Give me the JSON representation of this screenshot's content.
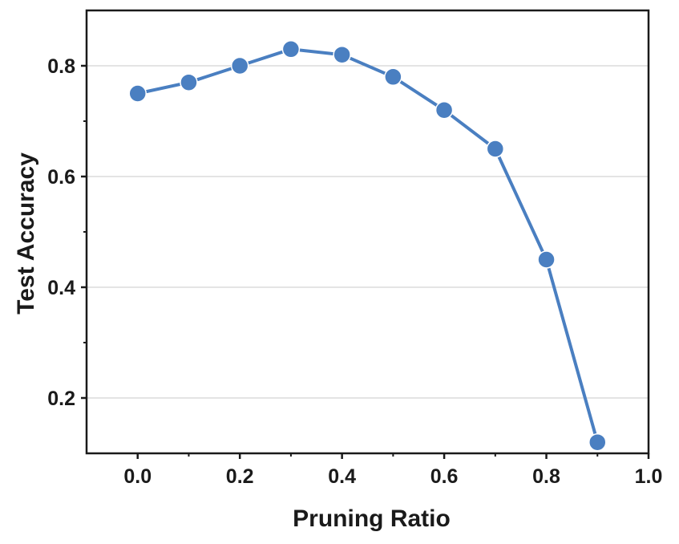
{
  "chart_data": {
    "type": "line",
    "title": "",
    "xlabel": "Pruning Ratio",
    "ylabel": "Test Accuracy",
    "xlim": [
      -0.1,
      1.0
    ],
    "ylim": [
      0.1,
      0.9
    ],
    "x_ticks": [
      0.0,
      0.2,
      0.4,
      0.6,
      0.8,
      1.0
    ],
    "x_tick_labels": [
      "0.0",
      "0.2",
      "0.4",
      "0.6",
      "0.8",
      "1.0"
    ],
    "y_ticks": [
      0.2,
      0.4,
      0.6,
      0.8
    ],
    "y_tick_labels": [
      "0.2",
      "0.4",
      "0.6",
      "0.8"
    ],
    "grid": "horizontal",
    "series": [
      {
        "name": "Test Accuracy",
        "color": "#4a7fc1",
        "x": [
          0.0,
          0.1,
          0.2,
          0.3,
          0.4,
          0.5,
          0.6,
          0.7,
          0.8,
          0.9
        ],
        "y": [
          0.75,
          0.77,
          0.8,
          0.83,
          0.82,
          0.78,
          0.72,
          0.65,
          0.45,
          0.12
        ]
      }
    ]
  }
}
